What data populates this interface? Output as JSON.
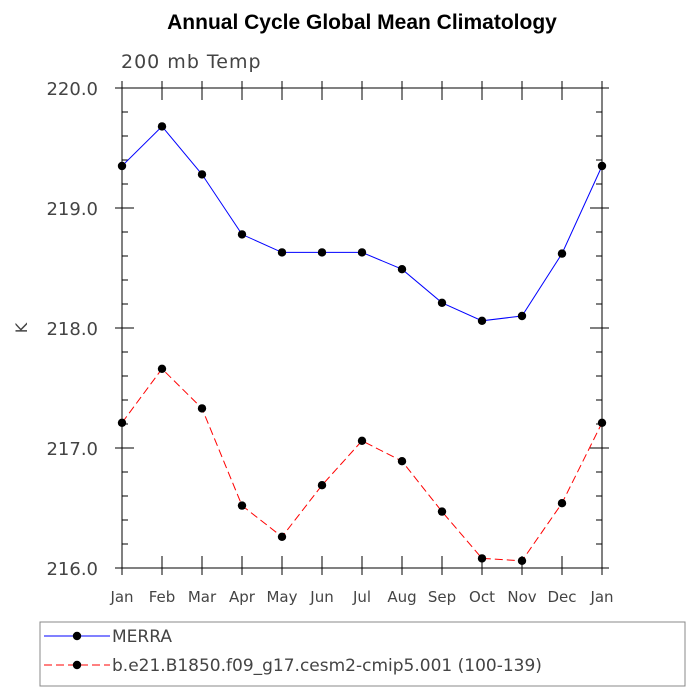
{
  "chart_data": {
    "type": "line",
    "title": "Annual Cycle Global Mean Climatology",
    "subtitle": "200 mb Temp",
    "xlabel": "",
    "ylabel": "K",
    "categories": [
      "Jan",
      "Feb",
      "Mar",
      "Apr",
      "May",
      "Jun",
      "Jul",
      "Aug",
      "Sep",
      "Oct",
      "Nov",
      "Dec",
      "Jan"
    ],
    "ylim": [
      216.0,
      220.0
    ],
    "yticks": [
      "216.0",
      "217.0",
      "218.0",
      "219.0",
      "220.0"
    ],
    "series": [
      {
        "name": "MERRA",
        "color": "#0000ff",
        "dash": "solid",
        "values": [
          219.35,
          219.68,
          219.28,
          218.78,
          218.63,
          218.63,
          218.63,
          218.49,
          218.21,
          218.06,
          218.1,
          218.62,
          219.35
        ]
      },
      {
        "name": "b.e21.B1850.f09_g17.cesm2-cmip5.001 (100-139)",
        "color": "#ff0000",
        "dash": "dashed",
        "values": [
          217.21,
          217.66,
          217.33,
          216.52,
          216.26,
          216.69,
          217.06,
          216.89,
          216.47,
          216.08,
          216.06,
          216.54,
          217.21
        ]
      }
    ],
    "legend_position": "bottom"
  }
}
